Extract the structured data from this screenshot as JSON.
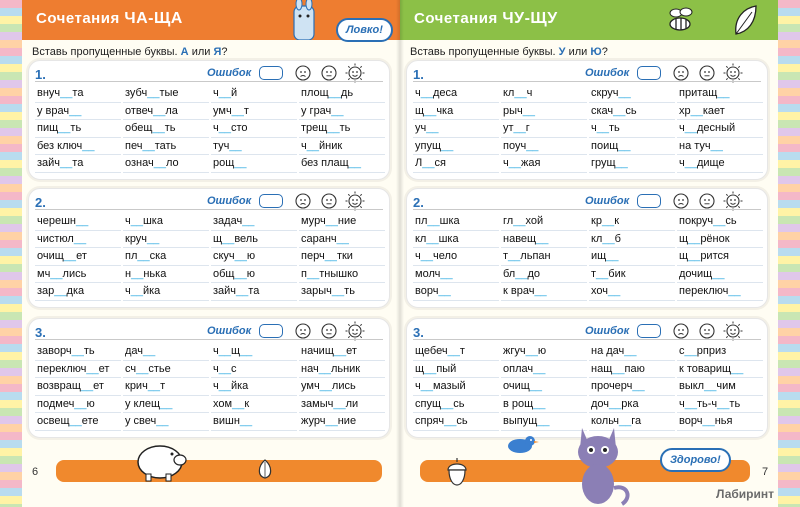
{
  "left_page": {
    "header_prefix": "Сочетания",
    "header_combo": "ЧА-ЩА",
    "bubble": "Ловко!",
    "instruction_prefix": "Вставь пропущенные буквы.",
    "letter_a": "А",
    "or_word": "или",
    "letter_b": "Я",
    "instruction_suffix": "?",
    "page_number": "6",
    "sections": [
      {
        "number": "1.",
        "errors_label": "Ошибок",
        "rows": [
          [
            "внуч__та",
            "зубч__тые",
            "ч__й",
            "площ__дь"
          ],
          [
            "у врач__",
            "отвеч__ла",
            "умч__т",
            "у грач__"
          ],
          [
            "пищ__ть",
            "обещ__ть",
            "ч__сто",
            "трещ__ть"
          ],
          [
            "без ключ__",
            "печ__тать",
            "туч__",
            "ч__йник"
          ],
          [
            "зайч__та",
            "означ__ло",
            "рощ__",
            "без плащ__"
          ]
        ]
      },
      {
        "number": "2.",
        "errors_label": "Ошибок",
        "rows": [
          [
            "черешн__",
            "ч__шка",
            "задач__",
            "мурч__ние"
          ],
          [
            "чистюл__",
            "круч__",
            "щ__вель",
            "саранч__"
          ],
          [
            "очищ__ет",
            "пл__ска",
            "скуч__ю",
            "перч__тки"
          ],
          [
            "мч__лись",
            "н__нька",
            "общ__ю",
            "п__тнышко"
          ],
          [
            "зар__дка",
            "ч__йка",
            "зайч__та",
            "зарыч__ть"
          ]
        ]
      },
      {
        "number": "3.",
        "errors_label": "Ошибок",
        "rows": [
          [
            "заворч__ть",
            "дач__",
            "ч__щ__",
            "начищ__ет"
          ],
          [
            "переключ__ет",
            "сч__стье",
            "ч__с",
            "нач__льник"
          ],
          [
            "возвращ__ет",
            "крич__т",
            "ч__йка",
            "умч__лись"
          ],
          [
            "подмеч__ю",
            "у клещ__",
            "хом__к",
            "замыч__ли"
          ],
          [
            "освещ__ете",
            "у свеч__",
            "вишн__",
            "журч__ние"
          ]
        ]
      }
    ]
  },
  "right_page": {
    "header_prefix": "Сочетания",
    "header_combo": "ЧУ-ЩУ",
    "bubble": "Здорово!",
    "instruction_prefix": "Вставь пропущенные буквы.",
    "letter_a": "У",
    "or_word": "или",
    "letter_b": "Ю",
    "instruction_suffix": "?",
    "page_number": "7",
    "logo": "Лабиринт",
    "sections": [
      {
        "number": "1.",
        "errors_label": "Ошибок",
        "rows": [
          [
            "ч__деса",
            "кл__ч",
            "скруч__",
            "притащ__"
          ],
          [
            "щ__чка",
            "рыч__",
            "скач__сь",
            "хр__кает"
          ],
          [
            "уч__",
            "ут__г",
            "ч__ть",
            "ч__десный"
          ],
          [
            "упущ__",
            "поуч__",
            "поищ__",
            "на туч__"
          ],
          [
            "Л__ся",
            "ч__жая",
            "грущ__",
            "ч__дище"
          ]
        ]
      },
      {
        "number": "2.",
        "errors_label": "Ошибок",
        "rows": [
          [
            "пл__шка",
            "гл__хой",
            "кр__к",
            "покруч__сь"
          ],
          [
            "кл__шка",
            "навещ__",
            "кл__б",
            "щ__рёнок"
          ],
          [
            "ч__чело",
            "т__льпан",
            "ищ__",
            "щ__рится"
          ],
          [
            "молч__",
            "бл__до",
            "т__бик",
            "дочищ__"
          ],
          [
            "ворч__",
            "к врач__",
            "хоч__",
            "переключ__"
          ]
        ]
      },
      {
        "number": "3.",
        "errors_label": "Ошибок",
        "rows": [
          [
            "щебеч__т",
            "жгуч__ю",
            "на дач__",
            "с__рприз"
          ],
          [
            "щ__пый",
            "оплач__",
            "нащ__паю",
            "к товарищ__"
          ],
          [
            "ч__мазый",
            "очищ__",
            "прочерч__",
            "выкл__чим"
          ],
          [
            "спущ__сь",
            "в рощ__",
            "доч__рка",
            "ч__ть-ч__ть"
          ],
          [
            "спряч__сь",
            "выпущ__",
            "кольч__га",
            "ворч__нья"
          ]
        ]
      }
    ]
  },
  "colors": {
    "left_header": "#ee7d30",
    "right_header": "#8cc047",
    "blank": "#29a8e0",
    "accent": "#2a6fb5"
  }
}
